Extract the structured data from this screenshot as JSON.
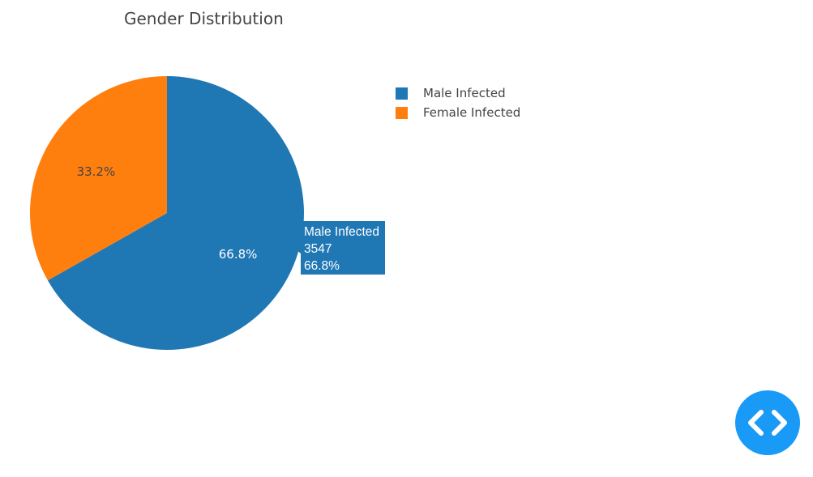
{
  "chart_data": {
    "type": "pie",
    "title": "Gender Distribution",
    "slices": [
      {
        "label": "Male Infected",
        "value": 3547,
        "percent_label": "66.8%",
        "color": "#1f77b4",
        "text_color": "#ffffff"
      },
      {
        "label": "Female Infected",
        "value": 1763,
        "percent_label": "33.2%",
        "color": "#ff7f0e",
        "text_color": "#444444"
      }
    ],
    "legend": {
      "placement": "top-right",
      "entries": [
        "Male Infected",
        "Female Infected"
      ]
    },
    "hover_tooltip": {
      "label": "Male Infected",
      "value": "3547",
      "percent": "66.8%",
      "color": "#1f77b4"
    }
  },
  "fab": {
    "icon": "code-brackets-icon",
    "color": "#1a9af7"
  }
}
